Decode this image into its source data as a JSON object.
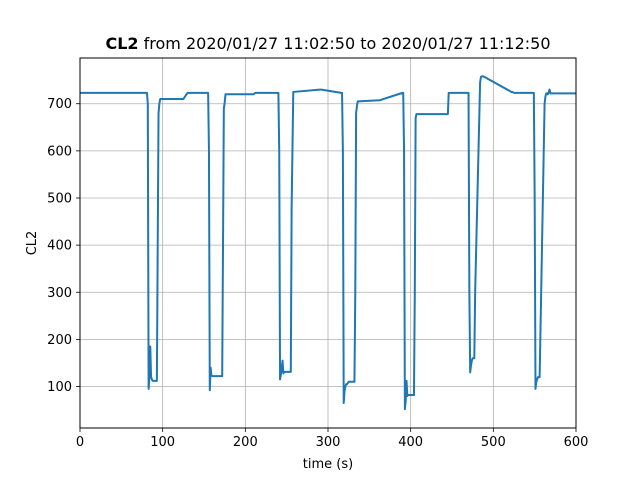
{
  "chart_data": {
    "type": "line",
    "title_bold": "CL2",
    "title_rest": " from 2020/01/27 11:02:50 to 2020/01/27 11:12:50",
    "xlabel": "time (s)",
    "ylabel": "CL2",
    "xlim": [
      0,
      600
    ],
    "ylim": [
      12,
      797
    ],
    "x_ticks": [
      0,
      100,
      200,
      300,
      400,
      500,
      600
    ],
    "y_ticks": [
      100,
      200,
      300,
      400,
      500,
      600,
      700
    ],
    "grid": true,
    "legend": "none",
    "line_color": "#1f77b4",
    "series": [
      {
        "x": [
          0,
          81,
          82,
          83,
          84,
          85,
          86,
          87,
          88,
          90,
          93,
          94,
          95,
          96,
          97,
          98,
          125,
          130,
          155,
          156,
          157,
          158,
          159,
          160,
          162,
          172,
          173,
          174,
          175,
          176,
          178,
          210,
          212,
          240,
          241,
          242,
          243,
          244,
          245,
          246,
          247,
          248,
          255,
          256,
          258,
          290,
          292,
          316,
          317,
          318,
          319,
          320,
          321,
          322,
          323,
          325,
          331,
          332,
          333,
          334,
          335,
          336,
          360,
          362,
          390,
          391,
          392,
          393,
          394,
          395,
          396,
          397,
          398,
          400,
          404,
          405,
          406,
          407,
          408,
          409,
          410,
          445,
          446,
          449,
          470,
          471,
          472,
          473,
          474,
          475,
          476,
          477,
          478,
          484,
          485,
          486,
          487,
          488,
          522,
          523,
          525,
          549,
          550,
          551,
          552,
          553,
          554,
          555,
          556,
          562,
          563,
          564,
          565,
          566,
          568,
          569,
          570,
          571,
          600
        ],
        "y": [
          723,
          723,
          700,
          95,
          120,
          185,
          120,
          115,
          112,
          112,
          112,
          400,
          680,
          700,
          710,
          710,
          710,
          723,
          723,
          600,
          92,
          140,
          123,
          122,
          122,
          122,
          400,
          690,
          702,
          720,
          720,
          720,
          723,
          723,
          600,
          115,
          125,
          140,
          155,
          128,
          131,
          131,
          131,
          480,
          725,
          730,
          730,
          723,
          723,
          600,
          65,
          90,
          100,
          105,
          105,
          110,
          110,
          110,
          300,
          680,
          695,
          705,
          707,
          707,
          723,
          723,
          600,
          52,
          70,
          112,
          80,
          82,
          82,
          82,
          82,
          300,
          670,
          678,
          678,
          678,
          678,
          678,
          723,
          723,
          723,
          300,
          130,
          145,
          155,
          160,
          160,
          160,
          300,
          745,
          757,
          758,
          758,
          758,
          725,
          725,
          723,
          723,
          500,
          95,
          110,
          115,
          120,
          120,
          120,
          700,
          715,
          722,
          722,
          720,
          730,
          722,
          722,
          722,
          722
        ]
      }
    ]
  }
}
